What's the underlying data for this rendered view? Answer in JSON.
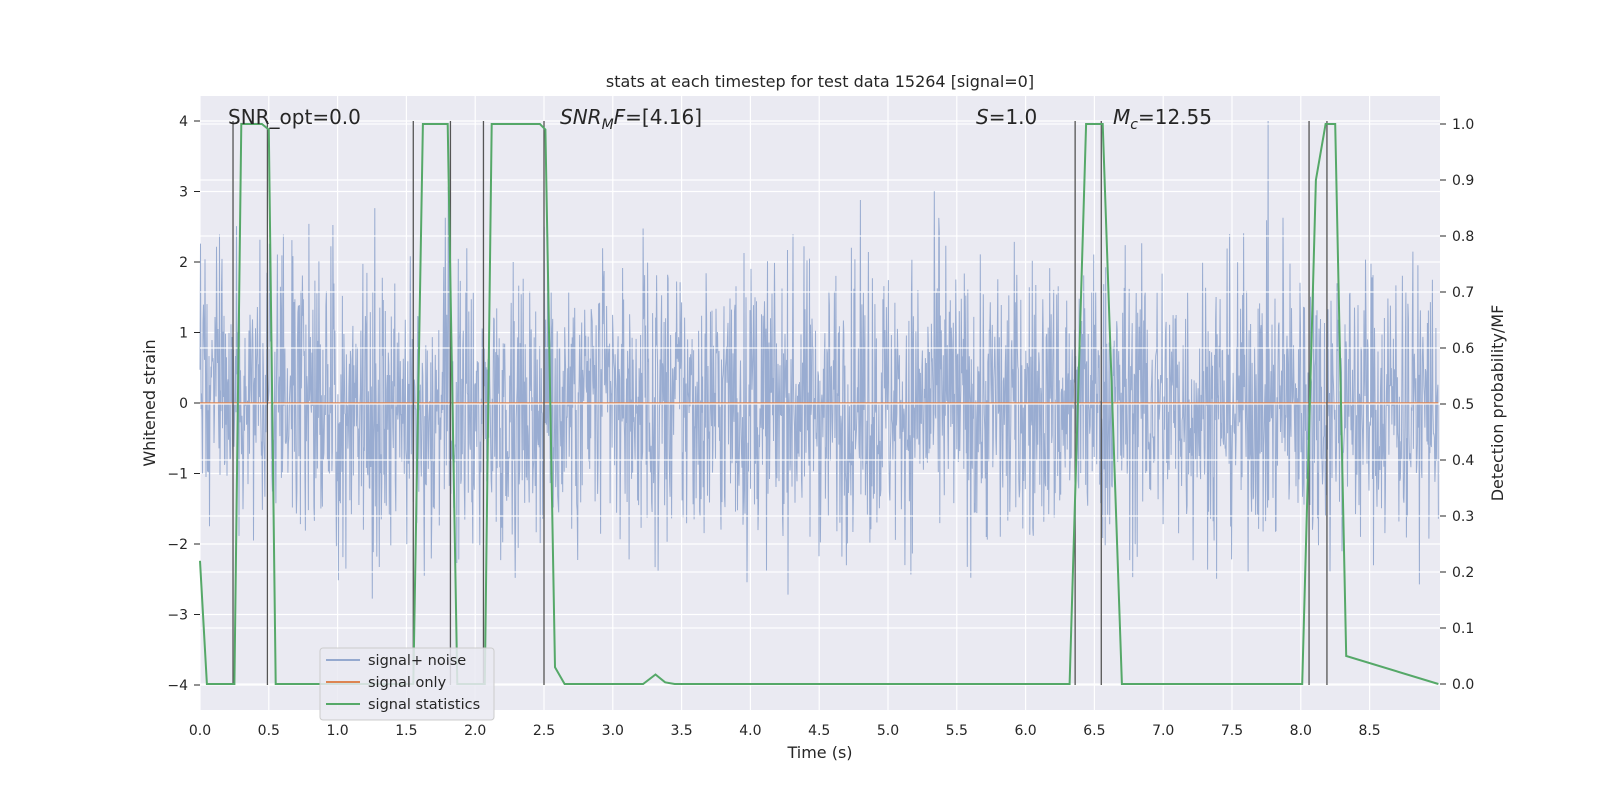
{
  "chart_data": {
    "type": "line",
    "title": "stats at each timestep for test data 15264 [signal=0]",
    "xlabel": "Time (s)",
    "ylabel": "Whitened strain",
    "y2label": "Detection probability/MF",
    "xlim": [
      0.0,
      9.0
    ],
    "ylim": [
      -4.4,
      4.4
    ],
    "y2lim": [
      -0.045,
      1.045
    ],
    "xticks": [
      0.0,
      0.5,
      1.0,
      1.5,
      2.0,
      2.5,
      3.0,
      3.5,
      4.0,
      4.5,
      5.0,
      5.5,
      6.0,
      6.5,
      7.0,
      7.5,
      8.0,
      8.5
    ],
    "xtick_labels": [
      "0.0",
      "0.5",
      "1.0",
      "1.5",
      "2.0",
      "2.5",
      "3.0",
      "3.5",
      "4.0",
      "4.5",
      "5.0",
      "5.5",
      "6.0",
      "6.5",
      "7.0",
      "7.5",
      "8.0",
      "8.5"
    ],
    "yticks": [
      -4,
      -3,
      -2,
      -1,
      0,
      1,
      2,
      3,
      4
    ],
    "ytick_labels": [
      "−4",
      "−3",
      "−2",
      "−1",
      "0",
      "1",
      "2",
      "3",
      "4"
    ],
    "y2ticks": [
      0.0,
      0.1,
      0.2,
      0.3,
      0.4,
      0.5,
      0.6,
      0.7,
      0.8,
      0.9,
      1.0
    ],
    "y2tick_labels": [
      "0.0",
      "0.1",
      "0.2",
      "0.3",
      "0.4",
      "0.5",
      "0.6",
      "0.7",
      "0.8",
      "0.9",
      "1.0"
    ],
    "grid": true,
    "legend_placement": "lower-left",
    "series": [
      {
        "name": "signal+ noise",
        "color": "#95a9cf",
        "style": "dense noisy trace, roughly within ±2.5 with spikes up to about ±3.7",
        "axis": "left",
        "envelope": [
          -4.0,
          4.0
        ]
      },
      {
        "name": "signal only",
        "color": "#dd8452",
        "axis": "left",
        "x": [
          0.0,
          9.0
        ],
        "y": [
          0.0,
          0.0
        ]
      },
      {
        "name": "signal statistics",
        "color": "#55a868",
        "axis": "right",
        "x": [
          0.0,
          0.05,
          0.25,
          0.3,
          0.45,
          0.5,
          0.55,
          1.55,
          1.62,
          1.8,
          1.87,
          2.07,
          2.12,
          2.47,
          2.51,
          2.58,
          2.65,
          3.22,
          3.31,
          3.38,
          3.45,
          6.32,
          6.44,
          6.56,
          6.7,
          8.01,
          8.11,
          8.18,
          8.25,
          8.33,
          9.0
        ],
        "y": [
          0.22,
          0.0,
          0.0,
          1.0,
          1.0,
          0.99,
          0.0,
          0.0,
          1.0,
          1.0,
          0.0,
          0.0,
          1.0,
          1.0,
          0.99,
          0.03,
          0.0,
          0.0,
          0.017,
          0.003,
          0.0,
          0.0,
          1.0,
          1.0,
          0.0,
          0.0,
          0.9,
          1.0,
          1.0,
          0.05,
          0.0
        ]
      }
    ],
    "vertical_markers": [
      0.24,
      0.49,
      1.55,
      1.82,
      2.06,
      2.5,
      6.36,
      6.55,
      8.06,
      8.19
    ],
    "annotations": [
      {
        "prefix": "SNR_opt",
        "italic": false,
        "sub": "",
        "suffix": "=0.0"
      },
      {
        "prefix": "SNR",
        "italic": true,
        "sub": "M",
        "suffix": "F=[4.16]"
      },
      {
        "prefix": "S",
        "italic": true,
        "sub": "",
        "suffix": "=1.0"
      },
      {
        "prefix": "M",
        "italic": true,
        "sub": "c",
        "suffix": "=12.55"
      }
    ]
  }
}
